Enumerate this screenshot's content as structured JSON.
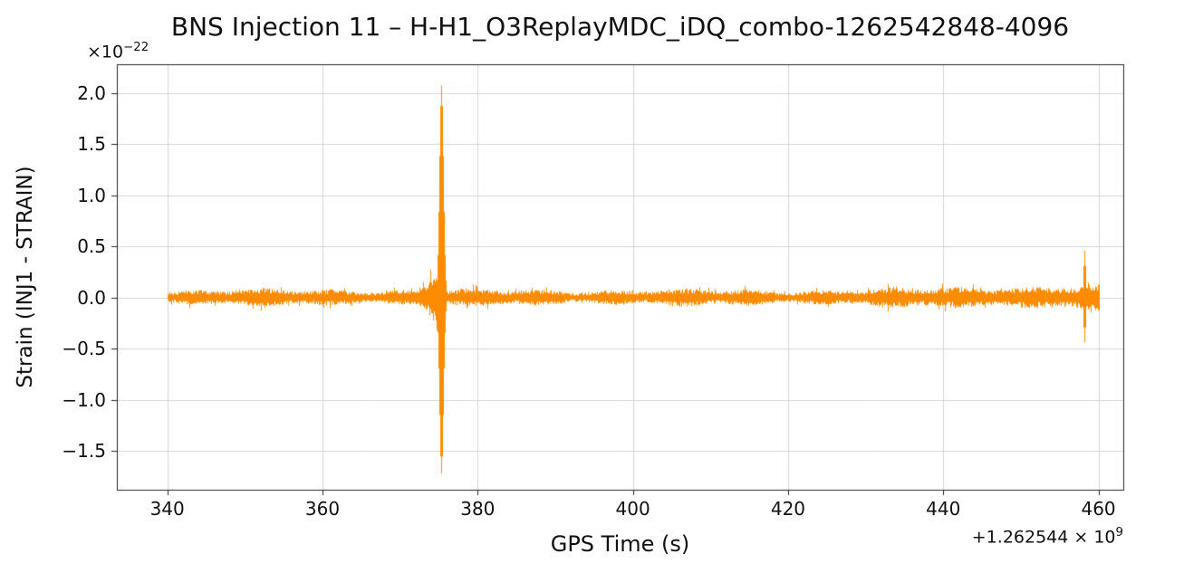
{
  "chart_data": {
    "type": "line",
    "title": "BNS Injection 11 – H-H1_O3ReplayMDC_iDQ_combo-1262542848-4096",
    "xlabel": "GPS Time (s)",
    "ylabel": "Strain (INJ1 - STRAIN)",
    "y_offset_display": {
      "base": "×10",
      "exp": "−22"
    },
    "x_offset_display": {
      "base": "+1.262544 × 10",
      "exp": "9"
    },
    "xlim": [
      333.5,
      463.2
    ],
    "ylim": [
      -1.88,
      2.28
    ],
    "x_tick_values": [
      340,
      360,
      380,
      400,
      420,
      440,
      460
    ],
    "x_tick_labels": [
      "340",
      "360",
      "380",
      "400",
      "420",
      "440",
      "460"
    ],
    "y_tick_values": [
      -1.5,
      -1.0,
      -0.5,
      0.0,
      0.5,
      1.0,
      1.5,
      2.0
    ],
    "y_tick_labels": [
      "−1.5",
      "−1.0",
      "−0.5",
      "0.0",
      "0.5",
      "1.0",
      "1.5",
      "2.0"
    ],
    "grid": true,
    "legend": "none",
    "line_color": "#ff8c00",
    "grid_color": "#d4d4d4",
    "spine_color": "#262626",
    "noise": {
      "x_start": 340,
      "x_end": 460,
      "base_amplitude": 0.062,
      "end_amplitude": 0.1,
      "chirp_ramp": {
        "start": 371.8,
        "end": 375.0,
        "max_extra": 0.3
      }
    },
    "events": [
      {
        "name": "injection-spike",
        "x": 375.3,
        "peak_positive": 2.07,
        "peak_negative": -1.72,
        "sigma": 0.26
      },
      {
        "name": "edge-glitch",
        "x": 458.2,
        "peak_positive": 0.46,
        "peak_negative": -0.44,
        "sigma": 0.13
      }
    ]
  }
}
